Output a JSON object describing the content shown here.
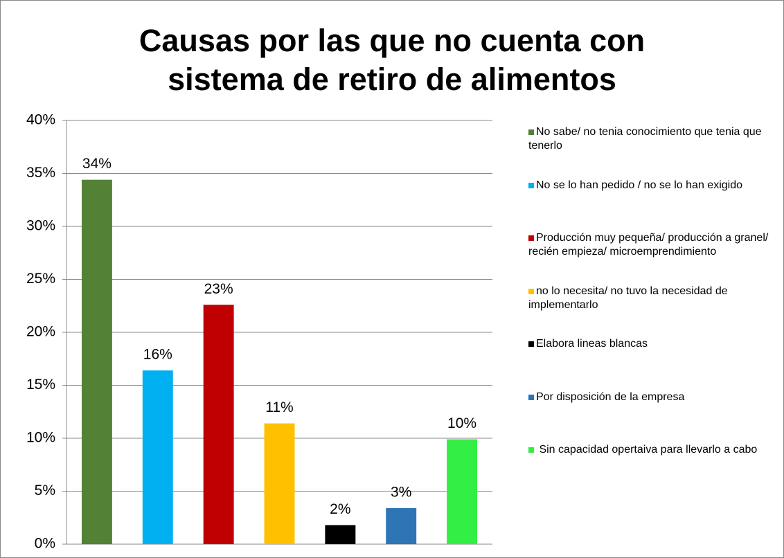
{
  "chart_data": {
    "type": "bar",
    "title": "Causas por las que no cuenta con sistema de retiro de alimentos",
    "categories": [
      "No sabe/ no tenia conocimiento que tenia que tenerlo",
      "No se lo han pedido / no se lo han exigido",
      "Producción muy pequeña/ producción a granel/ recién empieza/ microemprendimiento",
      "no lo necesita/ no tuvo la necesidad de implementarlo",
      "Elabora lineas blancas",
      "Por disposición de la empresa",
      " Sin capacidad opertaiva para llevarlo a cabo"
    ],
    "values": [
      34.4,
      16.4,
      22.6,
      11.4,
      1.8,
      3.4,
      9.9
    ],
    "value_labels": [
      "34%",
      "16%",
      "23%",
      "11%",
      "2%",
      "3%",
      "10%"
    ],
    "colors": [
      "#538135",
      "#00b0f0",
      "#c00000",
      "#ffc000",
      "#000000",
      "#2e75b6",
      "#33ee44"
    ],
    "ylim": [
      0,
      40
    ],
    "yticks": [
      {
        "value": 0,
        "label": "0%"
      },
      {
        "value": 5,
        "label": "5%"
      },
      {
        "value": 10,
        "label": "10%"
      },
      {
        "value": 15,
        "label": "15%"
      },
      {
        "value": 20,
        "label": "20%"
      },
      {
        "value": 25,
        "label": "25%"
      },
      {
        "value": 30,
        "label": "30%"
      },
      {
        "value": 35,
        "label": "35%"
      },
      {
        "value": 40,
        "label": "40%"
      }
    ],
    "grid": true,
    "legend": "right"
  }
}
